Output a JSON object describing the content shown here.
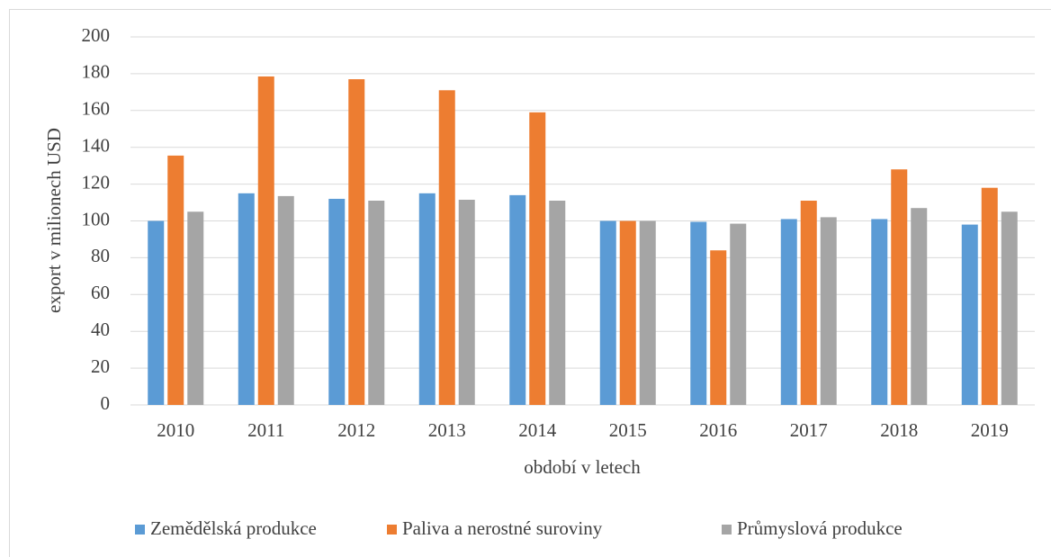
{
  "chart_data": {
    "type": "bar",
    "categories": [
      "2010",
      "2011",
      "2012",
      "2013",
      "2014",
      "2015",
      "2016",
      "2017",
      "2018",
      "2019"
    ],
    "series": [
      {
        "name": "Zemědělská produkce",
        "color": "#5b9bd5",
        "values": [
          100,
          115,
          112,
          115,
          114,
          100,
          99.5,
          101,
          101,
          98
        ]
      },
      {
        "name": "Paliva a nerostné suroviny",
        "color": "#ed7d31",
        "values": [
          135.5,
          178.5,
          177,
          171,
          159,
          100,
          84,
          111,
          128,
          118
        ]
      },
      {
        "name": "Průmyslová produkce",
        "color": "#a5a5a5",
        "values": [
          105,
          113.5,
          111,
          111.5,
          111,
          100,
          98.5,
          102,
          107,
          105
        ]
      }
    ],
    "x_label": "období v letech",
    "y_label": "export v milionech USD",
    "ylim": [
      0,
      200
    ],
    "yticks": [
      0,
      20,
      40,
      60,
      80,
      100,
      120,
      140,
      160,
      180,
      200
    ],
    "grid": true,
    "legend": "bottom"
  }
}
